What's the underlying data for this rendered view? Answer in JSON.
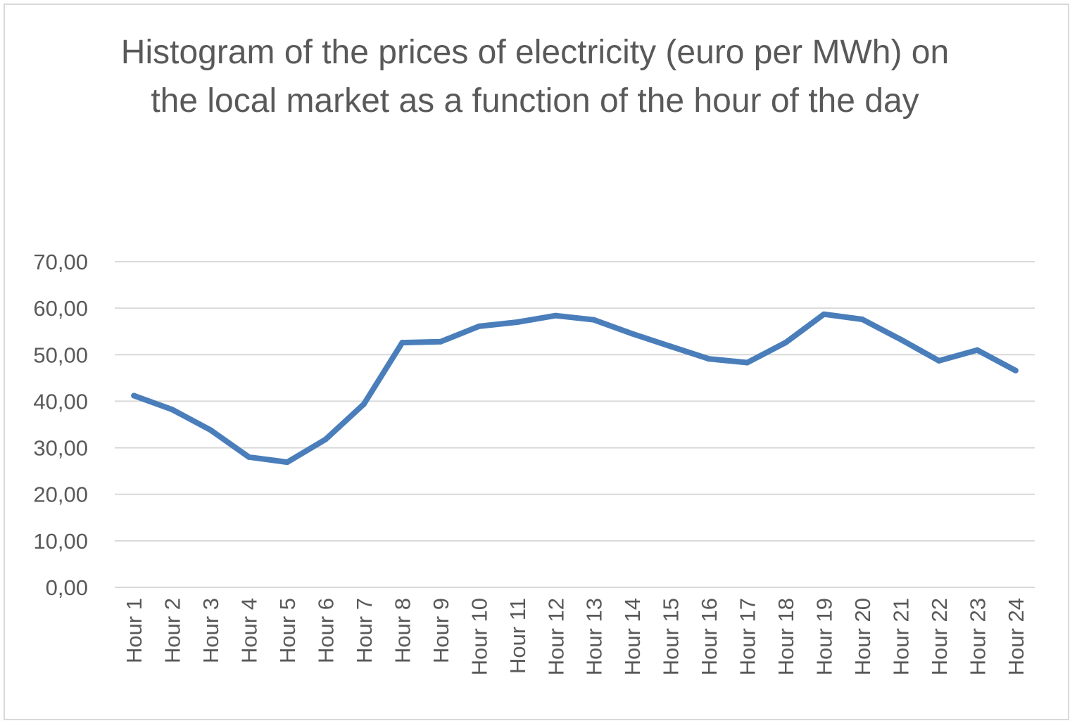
{
  "chart_data": {
    "type": "line",
    "title": "Histogram of the prices of electricity (euro per MWh) on the local market as a function of the hour of the day",
    "xlabel": "",
    "ylabel": "",
    "ylim": [
      0,
      70
    ],
    "yticks": [
      "0,00",
      "10,00",
      "20,00",
      "30,00",
      "40,00",
      "50,00",
      "60,00",
      "70,00"
    ],
    "grid": true,
    "legend": "none",
    "line_color": "#4a7ebb",
    "categories": [
      "Hour 1",
      "Hour 2",
      "Hour 3",
      "Hour 4",
      "Hour 5",
      "Hour 6",
      "Hour 7",
      "Hour 8",
      "Hour 9",
      "Hour 10",
      "Hour 11",
      "Hour 12",
      "Hour 13",
      "Hour 14",
      "Hour 15",
      "Hour 16",
      "Hour 17",
      "Hour 18",
      "Hour 19",
      "Hour 20",
      "Hour 21",
      "Hour 22",
      "Hour 23",
      "Hour 24"
    ],
    "series": [
      {
        "values": [
          41.2,
          38.2,
          33.8,
          28.0,
          26.9,
          31.8,
          39.4,
          52.6,
          52.8,
          56.1,
          57.0,
          58.4,
          57.5,
          54.5,
          51.8,
          49.1,
          48.3,
          52.6,
          58.7,
          57.6,
          53.3,
          48.7,
          51.0,
          46.6
        ]
      }
    ]
  }
}
